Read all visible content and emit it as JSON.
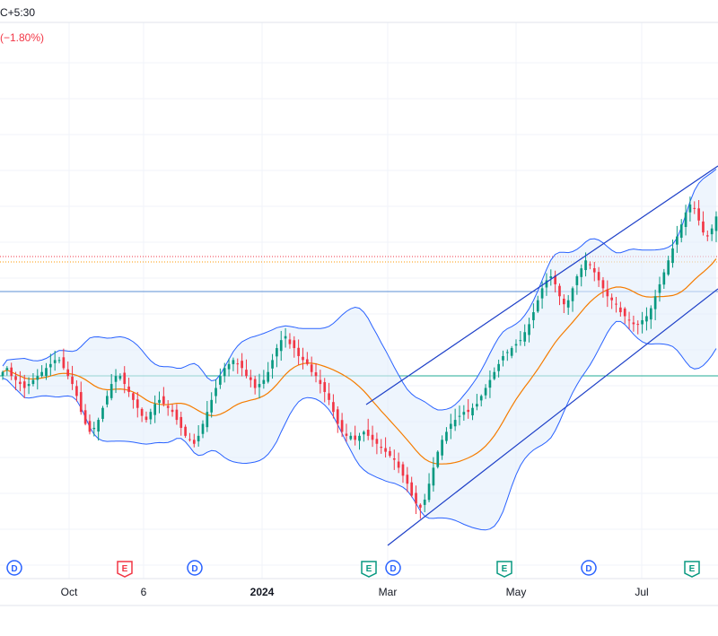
{
  "header": {
    "timezone_text": "C+5:30",
    "change_text": "(−1.80%)",
    "change_color": "#f23645"
  },
  "colors": {
    "up": "#089981",
    "down": "#f23645",
    "band": "#2962ff",
    "band_fill": "#e3effb",
    "ma": "#f57c00",
    "channel": "#1e40c8",
    "grid": "#f0f3fa",
    "hline_blue": "#5b8fd6",
    "hline_teal": "#22ab94",
    "dotted_red": "#f23645",
    "dotted_orange": "#ff9800"
  },
  "axis": {
    "x_ticks": [
      {
        "label": "Oct",
        "bold": false
      },
      {
        "label": "6",
        "bold": false
      },
      {
        "label": "2024",
        "bold": true
      },
      {
        "label": "Mar",
        "bold": false
      },
      {
        "label": "May",
        "bold": false
      },
      {
        "label": "Jul",
        "bold": false
      }
    ]
  },
  "events": [
    {
      "type": "dividend",
      "label": "D",
      "color": "#2962ff"
    },
    {
      "type": "earnings",
      "label": "E",
      "color": "#f23645"
    },
    {
      "type": "dividend",
      "label": "D",
      "color": "#2962ff"
    },
    {
      "type": "earnings",
      "label": "E",
      "color": "#089981"
    },
    {
      "type": "dividend",
      "label": "D",
      "color": "#2962ff"
    },
    {
      "type": "earnings",
      "label": "E",
      "color": "#089981"
    },
    {
      "type": "dividend",
      "label": "D",
      "color": "#2962ff"
    },
    {
      "type": "earnings",
      "label": "E",
      "color": "#089981"
    }
  ],
  "chart_data": {
    "type": "candlestick",
    "indicators": [
      "Bollinger Bands",
      "Moving Average"
    ],
    "x_axis_ticks": [
      "Oct",
      "6",
      "2024",
      "Mar",
      "May",
      "Jul"
    ],
    "y_axis": "not shown",
    "closes": [
      100,
      101,
      99,
      98,
      97,
      96,
      97,
      98,
      99,
      100,
      101,
      102,
      103,
      103,
      101,
      99,
      97,
      94,
      90,
      87,
      85,
      86,
      88,
      91,
      94,
      97,
      99,
      99,
      97,
      95,
      93,
      91,
      89,
      88,
      90,
      92,
      93,
      92,
      91,
      90,
      88,
      86,
      84,
      83,
      82,
      84,
      87,
      90,
      93,
      96,
      99,
      101,
      102,
      103,
      102,
      101,
      99,
      98,
      96,
      97,
      98,
      100,
      103,
      106,
      108,
      109,
      107,
      106,
      104,
      103,
      102,
      100,
      99,
      97,
      95,
      93,
      90,
      87,
      85,
      84,
      84,
      83,
      84,
      85,
      84,
      83,
      82,
      81,
      80,
      79,
      78,
      76,
      74,
      72,
      69,
      67,
      66,
      68,
      72,
      76,
      80,
      83,
      85,
      87,
      88,
      89,
      90,
      90,
      91,
      92,
      94,
      96,
      98,
      100,
      102,
      104,
      105,
      106,
      107,
      108,
      110,
      112,
      115,
      118,
      121,
      123,
      124,
      122,
      119,
      117,
      118,
      121,
      124,
      126,
      128,
      127,
      125,
      123,
      121,
      119,
      118,
      117,
      115,
      114,
      113,
      112,
      112,
      113,
      114,
      116,
      119,
      122,
      125,
      128,
      131,
      134,
      137,
      140,
      142,
      141,
      138,
      135,
      134,
      136,
      139
    ],
    "bollinger": "upper/lower band with 20-period moving average"
  }
}
